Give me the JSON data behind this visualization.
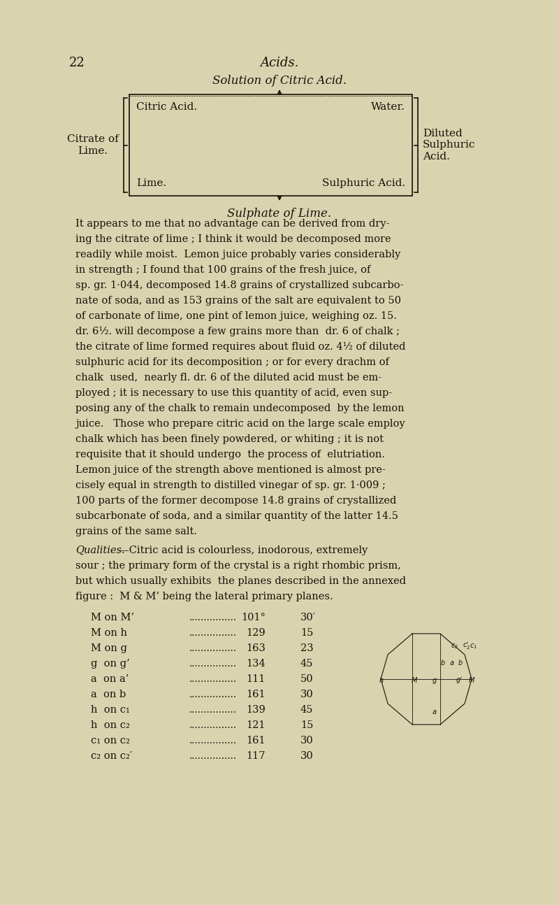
{
  "bg_color": "#d9d4b0",
  "page_color": "#d4ce9e",
  "text_color": "#1a1008",
  "page_number": "22",
  "page_header": "Acids.",
  "diagram_title": "Solution of Citric Acid.",
  "diagram": {
    "box_top_left": "Citric Acid.",
    "box_top_right": "Water.",
    "box_bottom_left": "Lime.",
    "box_bottom_right": "Sulphuric Acid.",
    "left_brace_label": "Citrate of\nLime.",
    "right_brace_label": "Diluted\nSulphuric\nAcid.",
    "bottom_label": "Sulphate of Lime."
  },
  "paragraph1": "It appears to me that no advantage can be derived from dry-\ning the citrate of lime ; I think it would be decomposed more\nreadily while moist.  Lemon juice probably varies considerably\nin strength ; I found that 100 grains of the fresh juice, of\nsp. gr. 1·044, decomposed 14.8 grains of crystallized subcarbo-\nnate of soda, and as 153 grains of the salt are equivalent to 50\nof carbonate of lime, one pint of lemon juice, weighing oz. 15.\ndr. 6½. will decompose a few grains more than  dr. 6 of chalk ;\nthe citrate of lime formed requires about fluid oz. 4½ of diluted\nsulphuric acid for its decomposition ; or for every drachm of\nchalk  used,  nearly fl. dr. 6 of the diluted acid must be em-\nployed ; it is necessary to use this quantity of acid, even sup-\nposing any of the chalk to remain undecomposed  by the lemon\njuice.   Those who prepare citric acid on the large scale employ\nchalk which has been finely powdered, or whiting ; it is not\nrequisite that it should undergo  the process of  elutriation.\nLemon juice of the strength above mentioned is almost pre-\ncisely equal in strength to distilled vinegar of sp. gr. 1·009 ;\n100 parts of the former decompose 14.8 grains of crystallized\nsubcarbonate of soda, and a similar quantity of the latter 14.5\ngrains of the same salt.",
  "paragraph2_label": "Qualities.",
  "paragraph2": "—Citric acid is colourless, inodorous, extremely\nsour ; the primary form of the crystal is a right rhombic prism,\nbut which usually exhibits  the planes described in the annexed\nfigure :  M & M’ being the lateral primary planes.",
  "table_rows": [
    {
      "label": "M on M’",
      "dots": true,
      "deg": "101°",
      "min": "30′"
    },
    {
      "label": "M on h",
      "dots": true,
      "deg": "129",
      "min": "15"
    },
    {
      "label": "M on g",
      "dots": true,
      "deg": "163",
      "min": "23"
    },
    {
      "label": "g  on g’",
      "dots": true,
      "deg": "134",
      "min": "45"
    },
    {
      "label": "a  on a’",
      "dots": true,
      "deg": "111",
      "min": "50"
    },
    {
      "label": "a  on b",
      "dots": true,
      "deg": "161",
      "min": "30"
    },
    {
      "label": "h  on c₁",
      "dots": true,
      "deg": "139",
      "min": "45"
    },
    {
      "label": "h  on c₂",
      "dots": true,
      "deg": "121",
      "min": "15"
    },
    {
      "label": "c₁ on c₂",
      "dots": true,
      "deg": "161",
      "min": "30"
    },
    {
      "label": "c₂ on c₂′",
      "dots": true,
      "deg": "117",
      "min": "30"
    }
  ]
}
